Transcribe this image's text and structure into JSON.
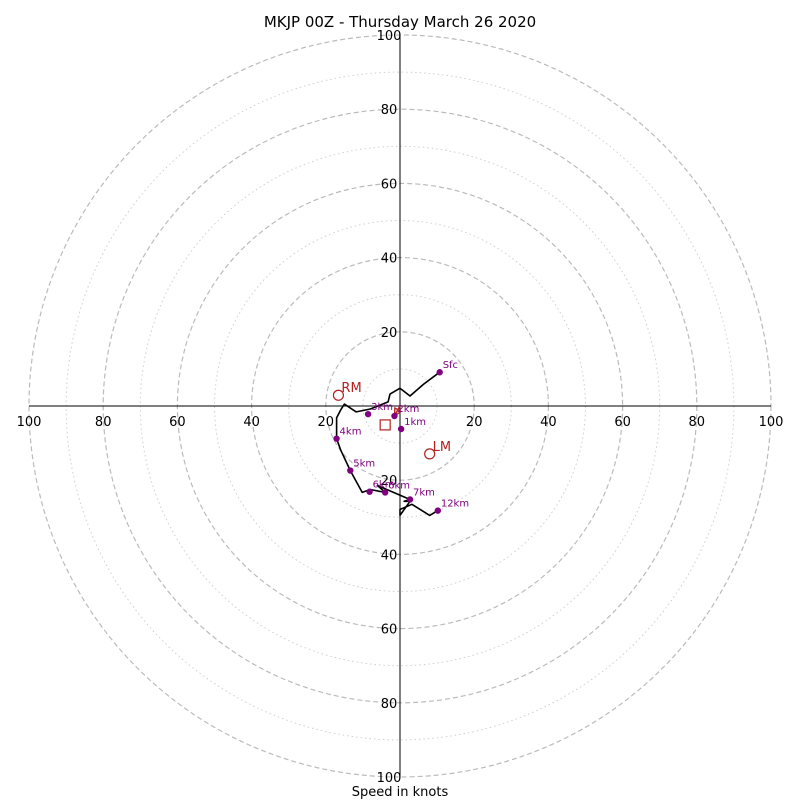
{
  "chart_data": {
    "type": "line",
    "title": "MKJP 00Z - Thursday March 26 2020",
    "xlabel": "Speed in knots",
    "rlim": [
      0,
      100
    ],
    "major_rings": [
      20,
      40,
      60,
      80,
      100
    ],
    "minor_rings": [
      10,
      30,
      50,
      70,
      90
    ],
    "tick_labels_x": [
      "100",
      "80",
      "60",
      "40",
      "20",
      "20",
      "40",
      "60",
      "80",
      "100"
    ],
    "tick_labels_y": [
      "100",
      "80",
      "60",
      "40",
      "20",
      "20",
      "40",
      "60",
      "80",
      "100"
    ],
    "hodograph_line": {
      "color": "#000000",
      "points": [
        [
          10.7,
          9.1
        ],
        [
          6.4,
          5.9
        ],
        [
          2.7,
          2.7
        ],
        [
          0.0,
          4.8
        ],
        [
          -2.7,
          3.2
        ],
        [
          -3.2,
          1.1
        ],
        [
          -8.0,
          -0.8
        ],
        [
          -11.8,
          -1.6
        ],
        [
          -15.0,
          0.5
        ],
        [
          -16.0,
          -1.1
        ],
        [
          -17.1,
          -3.2
        ],
        [
          -17.1,
          -8.8
        ],
        [
          -16.0,
          -11.8
        ],
        [
          -13.4,
          -17.4
        ],
        [
          -10.2,
          -23.3
        ],
        [
          -8.0,
          -22.5
        ],
        [
          -4.0,
          -23.3
        ],
        [
          -6.1,
          -21.4
        ],
        [
          2.7,
          -25.2
        ],
        [
          1.1,
          -25.7
        ],
        [
          2.7,
          -25.7
        ],
        [
          0.0,
          -29.5
        ],
        [
          0.0,
          -27.9
        ],
        [
          3.2,
          -26.5
        ],
        [
          8.0,
          -29.5
        ],
        [
          10.2,
          -28.2
        ]
      ]
    },
    "height_markers": [
      {
        "label": "Sfc",
        "x": 10.7,
        "y": 9.1
      },
      {
        "label": "1km",
        "x": 0.3,
        "y": -6.2
      },
      {
        "label": "2km",
        "x": -1.5,
        "y": -2.7
      },
      {
        "label": "3km",
        "x": -8.6,
        "y": -2.2
      },
      {
        "label": "4km",
        "x": -17.1,
        "y": -8.8
      },
      {
        "label": "5km",
        "x": -13.4,
        "y": -17.4
      },
      {
        "label": "6km",
        "x": -8.2,
        "y": -23.1
      },
      {
        "label": "6km",
        "x": -4.0,
        "y": -23.3
      },
      {
        "label": "7km",
        "x": 2.7,
        "y": -25.2
      },
      {
        "label": "12km",
        "x": 10.2,
        "y": -28.2
      }
    ],
    "storm_motion": [
      {
        "label": "RM",
        "x": -16.6,
        "y": 2.9,
        "marker": "circle"
      },
      {
        "label": "LM",
        "x": 8.0,
        "y": -12.9,
        "marker": "circle"
      },
      {
        "label": "",
        "x": -4.0,
        "y": -5.1,
        "marker": "square"
      }
    ],
    "mean_wind_vector": {
      "from": [
        0,
        0
      ],
      "to": [
        -1.5,
        -2.7
      ]
    },
    "colors": {
      "line": "#000000",
      "markers": "#800080",
      "storm_motion": "#b22222",
      "major_grid": "#bbbbbb",
      "minor_grid": "#cfcfcf"
    },
    "grid": true,
    "legend": "none"
  }
}
